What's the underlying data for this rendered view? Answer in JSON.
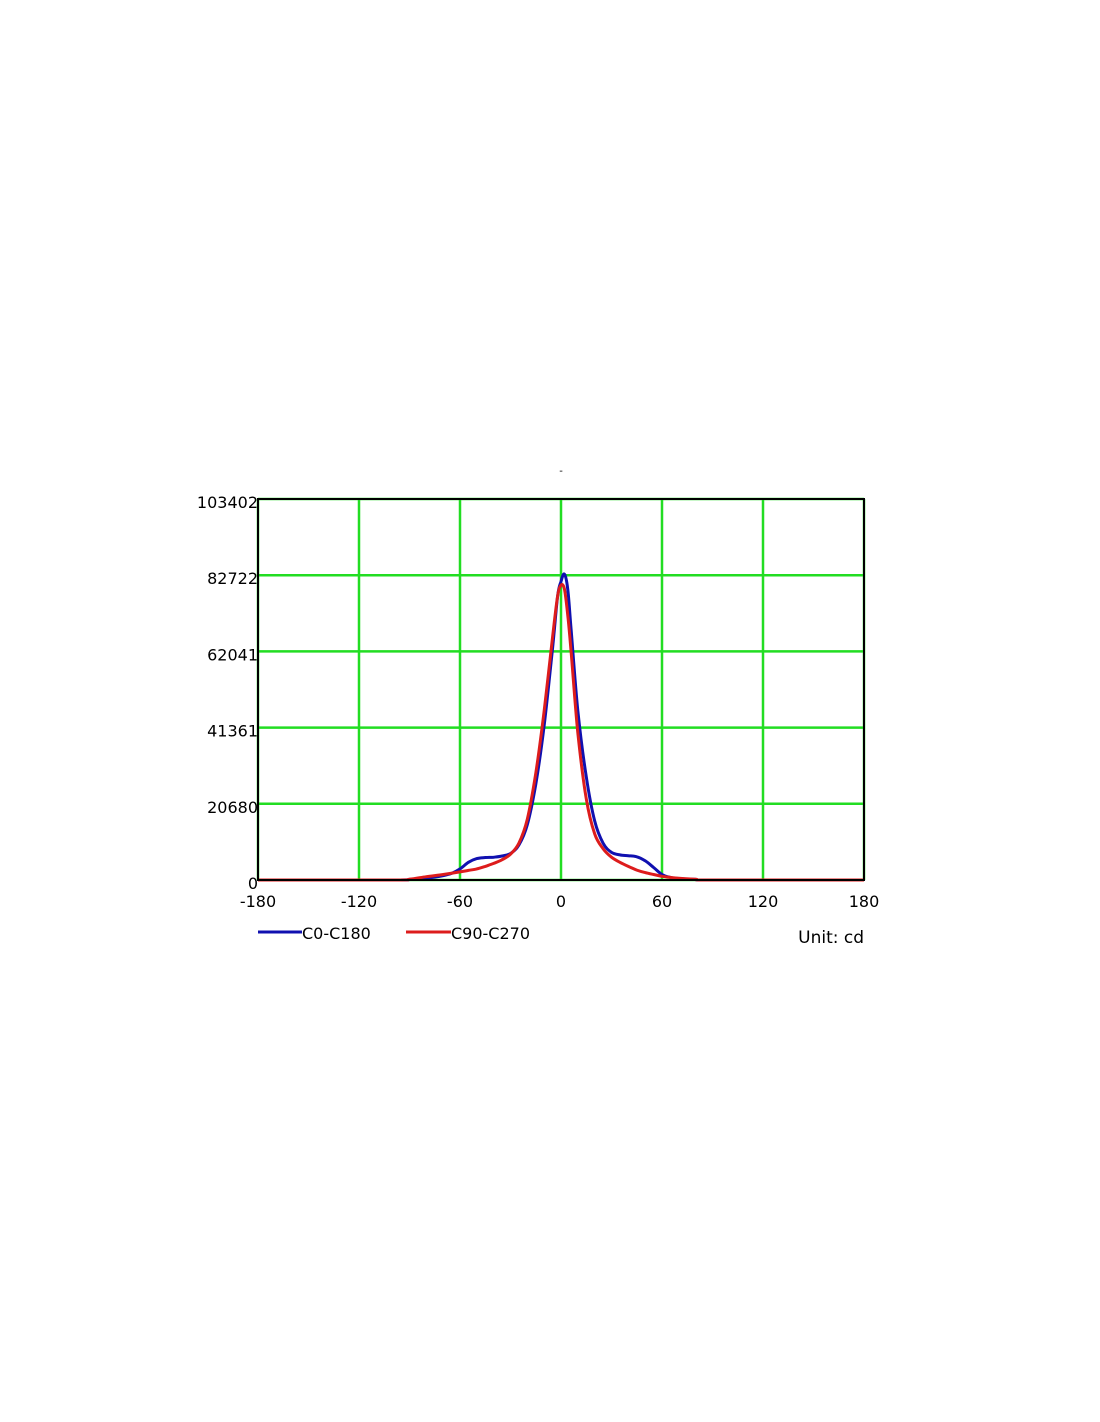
{
  "chart_data": {
    "type": "line",
    "title": "",
    "xlabel": "",
    "ylabel": "",
    "xlim": [
      -180,
      180
    ],
    "ylim": [
      0,
      103402
    ],
    "x_ticks": [
      -180,
      -120,
      -60,
      0,
      60,
      120,
      180
    ],
    "y_ticks": [
      0,
      20680,
      41361,
      62041,
      82722,
      103402
    ],
    "grid": true,
    "grid_color": "#22dd22",
    "legend_position": "bottom-left",
    "unit_text": "Unit: cd",
    "series": [
      {
        "name": "C0-C180",
        "color": "#1010b0",
        "points": [
          [
            -180,
            0
          ],
          [
            -100,
            0
          ],
          [
            -90,
            150
          ],
          [
            -80,
            500
          ],
          [
            -70,
            1200
          ],
          [
            -65,
            1800
          ],
          [
            -60,
            3000
          ],
          [
            -55,
            4800
          ],
          [
            -50,
            5800
          ],
          [
            -45,
            6100
          ],
          [
            -40,
            6200
          ],
          [
            -35,
            6500
          ],
          [
            -30,
            7200
          ],
          [
            -25,
            9500
          ],
          [
            -20,
            15000
          ],
          [
            -15,
            26000
          ],
          [
            -10,
            42000
          ],
          [
            -5,
            63000
          ],
          [
            -2,
            77000
          ],
          [
            0,
            81000
          ],
          [
            2,
            83000
          ],
          [
            4,
            79000
          ],
          [
            6,
            68000
          ],
          [
            10,
            46000
          ],
          [
            15,
            28000
          ],
          [
            20,
            16000
          ],
          [
            25,
            10000
          ],
          [
            30,
            7500
          ],
          [
            35,
            6800
          ],
          [
            40,
            6600
          ],
          [
            45,
            6300
          ],
          [
            50,
            5200
          ],
          [
            55,
            3400
          ],
          [
            60,
            1500
          ],
          [
            65,
            700
          ],
          [
            70,
            400
          ],
          [
            80,
            150
          ],
          [
            90,
            0
          ],
          [
            180,
            0
          ]
        ]
      },
      {
        "name": "C90-C270",
        "color": "#dd1c1c",
        "points": [
          [
            -180,
            0
          ],
          [
            -100,
            0
          ],
          [
            -90,
            200
          ],
          [
            -80,
            900
          ],
          [
            -70,
            1500
          ],
          [
            -60,
            2200
          ],
          [
            -55,
            2600
          ],
          [
            -50,
            3000
          ],
          [
            -45,
            3700
          ],
          [
            -40,
            4500
          ],
          [
            -35,
            5500
          ],
          [
            -30,
            7000
          ],
          [
            -25,
            10000
          ],
          [
            -20,
            16500
          ],
          [
            -15,
            29000
          ],
          [
            -10,
            46000
          ],
          [
            -5,
            66000
          ],
          [
            -2,
            77000
          ],
          [
            0,
            80000
          ],
          [
            2,
            79000
          ],
          [
            4,
            72000
          ],
          [
            6,
            62000
          ],
          [
            10,
            40000
          ],
          [
            15,
            22000
          ],
          [
            20,
            12500
          ],
          [
            25,
            8500
          ],
          [
            30,
            6200
          ],
          [
            35,
            4800
          ],
          [
            40,
            3700
          ],
          [
            45,
            2700
          ],
          [
            50,
            2000
          ],
          [
            55,
            1500
          ],
          [
            60,
            1000
          ],
          [
            65,
            700
          ],
          [
            70,
            500
          ],
          [
            80,
            200
          ],
          [
            90,
            0
          ],
          [
            180,
            0
          ]
        ]
      }
    ]
  }
}
